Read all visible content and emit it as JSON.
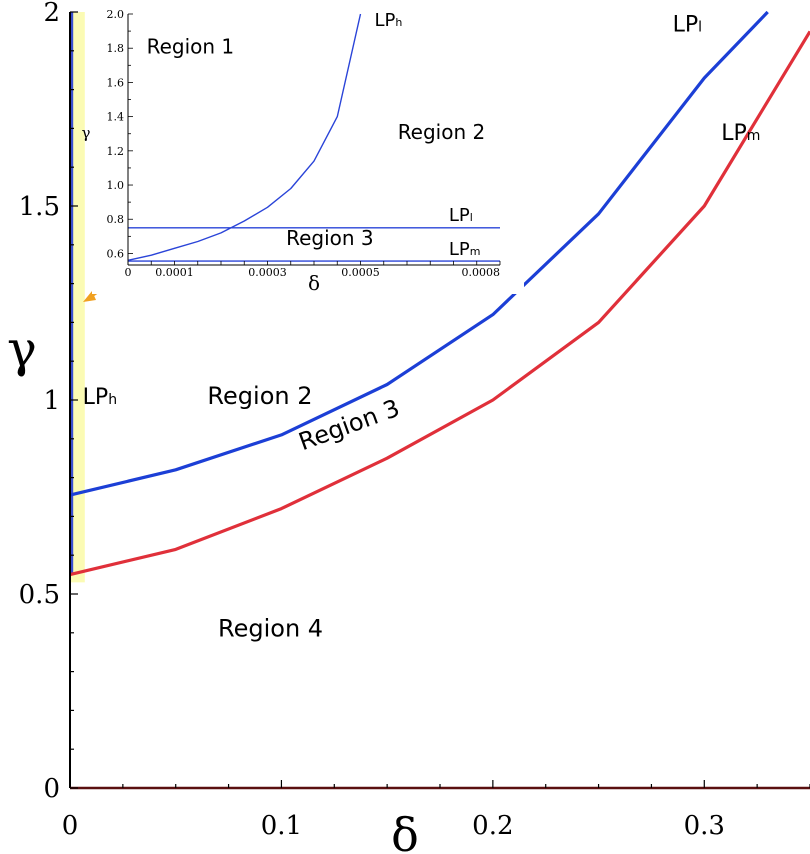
{
  "chart_data": [
    {
      "type": "line",
      "xlabel": "δ",
      "ylabel": "γ",
      "xlim": [
        0,
        0.35
      ],
      "ylim": [
        0,
        2
      ],
      "x_ticks": [
        {
          "value": 0,
          "label": "0"
        },
        {
          "value": 0.1,
          "label": "0.1"
        },
        {
          "value": 0.2,
          "label": "0.2"
        },
        {
          "value": 0.3,
          "label": "0.3"
        }
      ],
      "y_ticks": [
        {
          "value": 0,
          "label": "0"
        },
        {
          "value": 0.5,
          "label": "0.5"
        },
        {
          "value": 1,
          "label": "1"
        },
        {
          "value": 1.5,
          "label": "1.5"
        },
        {
          "value": 2,
          "label": "2"
        }
      ],
      "grid": false,
      "series": [
        {
          "name": "LPh",
          "color": "#3a4fd0",
          "x": [
            0.0008,
            0.0008
          ],
          "y": [
            0.55,
            2.0
          ]
        },
        {
          "name": "LPl",
          "color": "#1c3fd6",
          "x": [
            0,
            0.05,
            0.1,
            0.15,
            0.2,
            0.25,
            0.3,
            0.33
          ],
          "y": [
            0.755,
            0.82,
            0.91,
            1.04,
            1.22,
            1.48,
            1.83,
            2.0
          ]
        },
        {
          "name": "LPm",
          "color": "#e0303a",
          "x": [
            0,
            0.05,
            0.1,
            0.15,
            0.2,
            0.25,
            0.3,
            0.35
          ],
          "y": [
            0.55,
            0.615,
            0.72,
            0.85,
            1.0,
            1.2,
            1.5,
            1.95
          ]
        }
      ],
      "highlight_band": {
        "x_from": 0.0,
        "x_to": 0.007,
        "y_from": 0.53,
        "y_to": 2.0,
        "color": "#fbfbb4"
      },
      "annotations": [
        {
          "text": "Region 2",
          "x": 0.065,
          "y": 0.99,
          "rotate": 0
        },
        {
          "text": "Region 3",
          "x": 0.11,
          "y": 0.87,
          "rotate": -20
        },
        {
          "text": "Region 4",
          "x": 0.07,
          "y": 0.39,
          "rotate": 0
        }
      ],
      "curve_labels": [
        {
          "base": "LP",
          "sub": "h",
          "x": 0.006,
          "y": 0.99
        },
        {
          "base": "LP",
          "sub": "l",
          "x": 0.285,
          "y": 1.95
        },
        {
          "base": "LP",
          "sub": "m",
          "x": 0.308,
          "y": 1.67
        }
      ],
      "pointer_arrow_color": "#f0a020"
    },
    {
      "type": "line",
      "inset": true,
      "xlabel": "δ",
      "ylabel": "γ",
      "xlim": [
        0,
        0.0008
      ],
      "ylim": [
        0.55,
        2.0
      ],
      "x_ticks": [
        {
          "value": 0,
          "label": "0"
        },
        {
          "value": 0.0001,
          "label": "0.0001"
        },
        {
          "value": 0.0003,
          "label": "0.0003"
        },
        {
          "value": 0.0005,
          "label": "0.0005"
        },
        {
          "value": 0.0008,
          "label": "0.0008"
        }
      ],
      "y_ticks": [
        {
          "value": 0.6,
          "label": "0.6"
        },
        {
          "value": 0.8,
          "label": "0.8"
        },
        {
          "value": 1.0,
          "label": "1.0"
        },
        {
          "value": 1.2,
          "label": "1.2"
        },
        {
          "value": 1.4,
          "label": "1.4"
        },
        {
          "value": 1.6,
          "label": "1.6"
        },
        {
          "value": 1.8,
          "label": "1.8"
        },
        {
          "value": 2.0,
          "label": "2.0"
        }
      ],
      "grid": false,
      "series": [
        {
          "name": "LPh",
          "color": "#2a44d8",
          "x": [
            0,
            5e-05,
            0.0001,
            0.00015,
            0.0002,
            0.00025,
            0.0003,
            0.00035,
            0.0004,
            0.00045,
            0.0005
          ],
          "y": [
            0.56,
            0.59,
            0.63,
            0.67,
            0.72,
            0.79,
            0.87,
            0.98,
            1.14,
            1.4,
            2.0
          ]
        },
        {
          "name": "LPl",
          "color": "#2a44d8",
          "x": [
            0,
            0.0008
          ],
          "y": [
            0.75,
            0.75
          ]
        },
        {
          "name": "LPm",
          "color": "#2a44d8",
          "x": [
            0,
            0.0008
          ],
          "y": [
            0.555,
            0.555
          ]
        }
      ],
      "annotations": [
        {
          "text": "Region 1",
          "x": 4e-05,
          "y": 1.77,
          "rotate": 0
        },
        {
          "text": "Region 2",
          "x": 0.00058,
          "y": 1.27,
          "rotate": 0
        },
        {
          "text": "Region 3",
          "x": 0.00034,
          "y": 0.65,
          "rotate": 0
        }
      ],
      "curve_labels": [
        {
          "base": "LP",
          "sub": "h",
          "x": 0.00053,
          "y": 1.93
        },
        {
          "base": "LP",
          "sub": "l",
          "x": 0.00069,
          "y": 0.79
        },
        {
          "base": "LP",
          "sub": "m",
          "x": 0.00069,
          "y": 0.59
        }
      ]
    }
  ]
}
